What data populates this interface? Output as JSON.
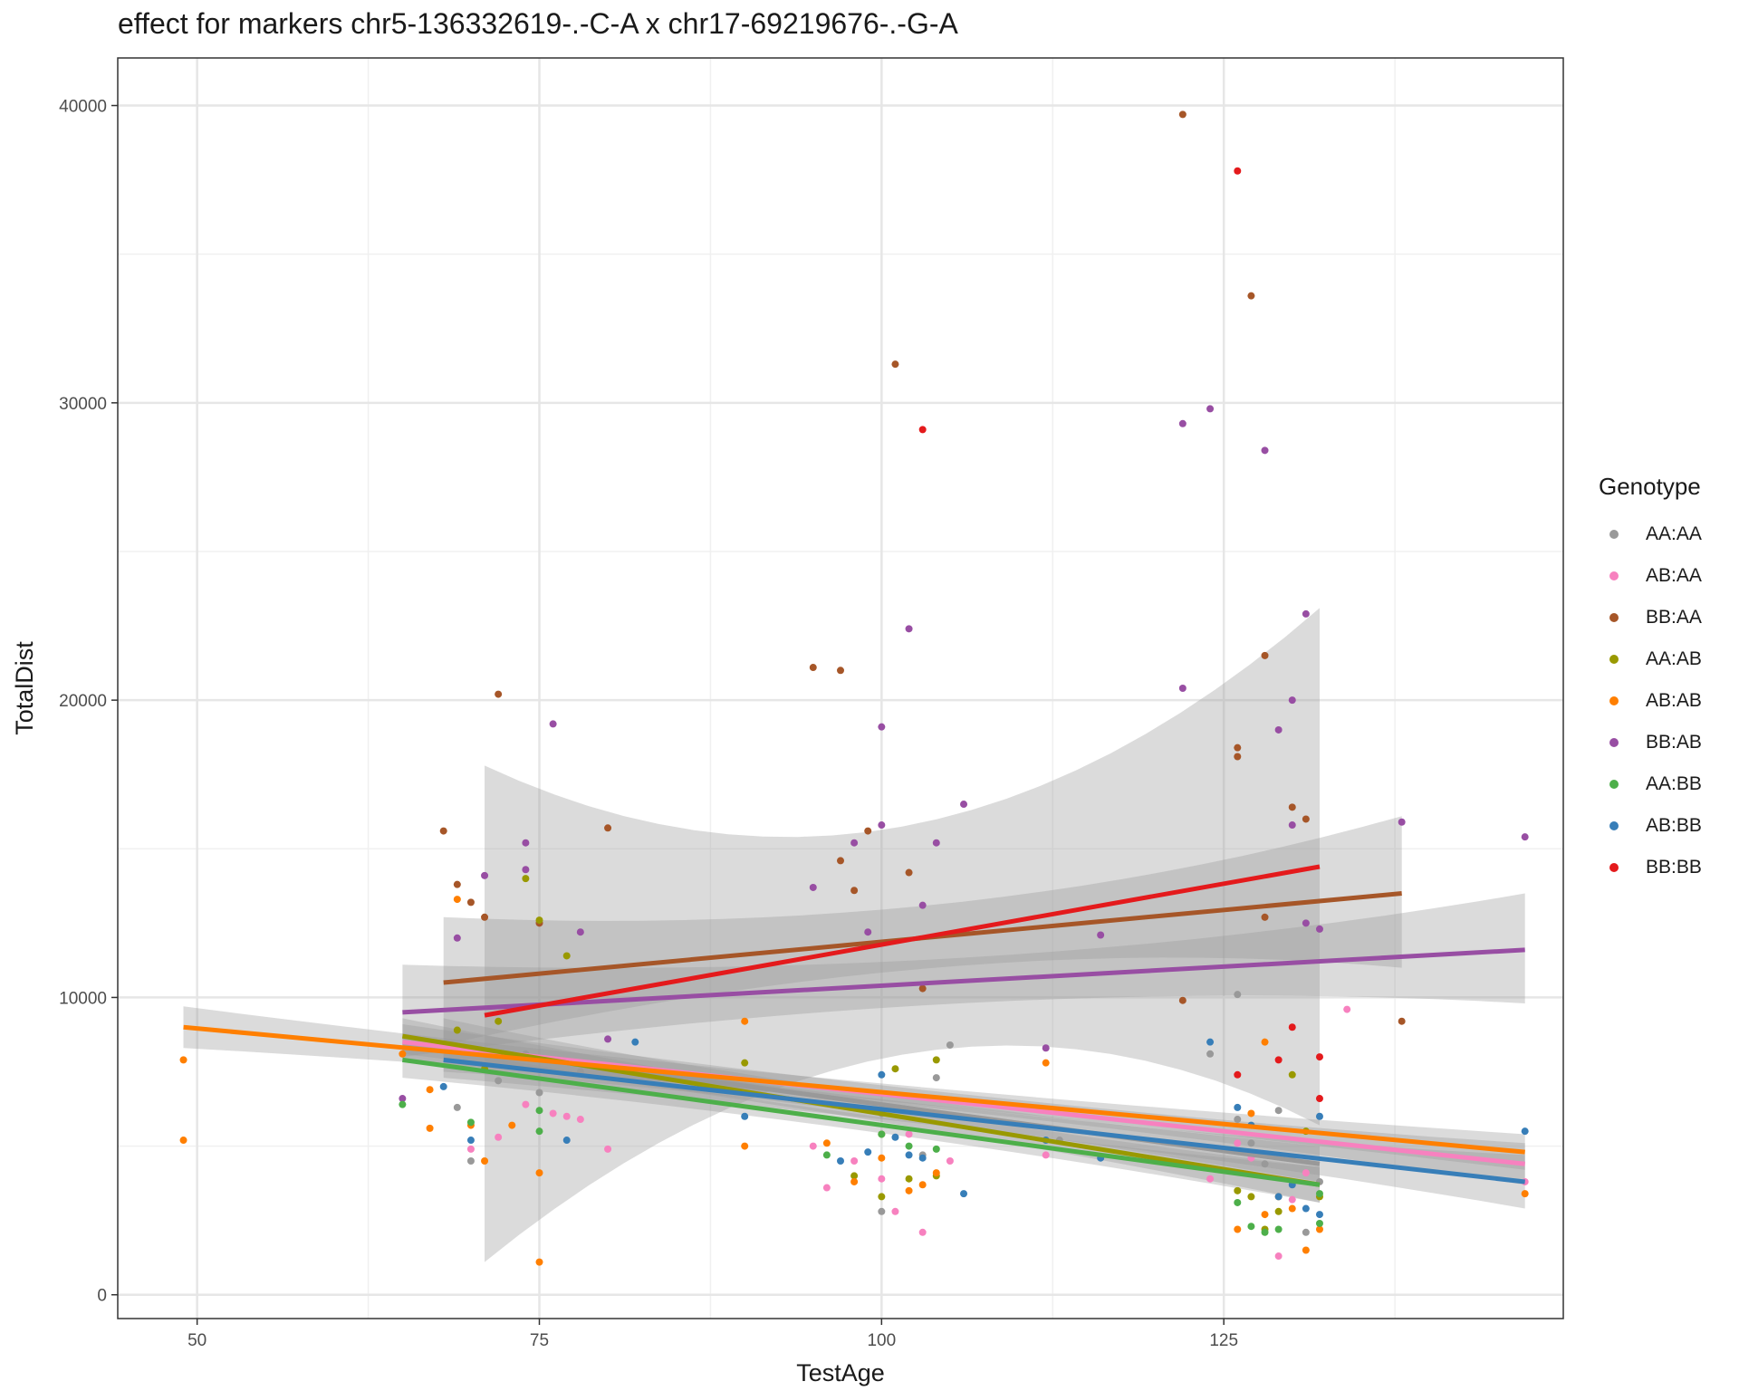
{
  "chart_data": {
    "type": "scatter",
    "title": "effect for markers chr5-136332619-.-C-A x chr17-69219676-.-G-A",
    "xlabel": "TestAge",
    "ylabel": "TotalDist",
    "xlim": [
      44.2,
      149.8
    ],
    "ylim": [
      -800,
      41600
    ],
    "x_ticks": [
      50,
      75,
      100,
      125
    ],
    "y_ticks": [
      0,
      10000,
      20000,
      30000,
      40000
    ],
    "grid": true,
    "legend": {
      "title": "Genotype",
      "placement": "right"
    },
    "series": [
      {
        "name": "AA:AA",
        "color": "#999999",
        "points": [
          [
            69,
            6300
          ],
          [
            70,
            4500
          ],
          [
            72,
            7200
          ],
          [
            74,
            8100
          ],
          [
            75,
            6800
          ],
          [
            78,
            7500
          ],
          [
            100,
            2800
          ],
          [
            100,
            6100
          ],
          [
            103,
            4700
          ],
          [
            104,
            7300
          ],
          [
            105,
            8400
          ],
          [
            113,
            5200
          ],
          [
            124,
            8100
          ],
          [
            126,
            10100
          ],
          [
            126,
            5900
          ],
          [
            127,
            5100
          ],
          [
            128,
            4400
          ],
          [
            129,
            6200
          ],
          [
            130,
            4600
          ],
          [
            131,
            2100
          ],
          [
            132,
            3800
          ]
        ],
        "fit": {
          "x": [
            68,
            132
          ],
          "y": [
            8400,
            4400
          ],
          "ci_lower": [
            7500,
            3800
          ],
          "ci_upper": [
            9300,
            5000
          ]
        }
      },
      {
        "name": "AB:AA",
        "color": "#F781BF",
        "points": [
          [
            70,
            4900
          ],
          [
            72,
            5300
          ],
          [
            74,
            6400
          ],
          [
            76,
            6100
          ],
          [
            77,
            6000
          ],
          [
            78,
            5900
          ],
          [
            80,
            4900
          ],
          [
            95,
            5000
          ],
          [
            96,
            3600
          ],
          [
            98,
            4500
          ],
          [
            100,
            3900
          ],
          [
            101,
            2800
          ],
          [
            102,
            5400
          ],
          [
            103,
            2100
          ],
          [
            105,
            4500
          ],
          [
            112,
            4700
          ],
          [
            124,
            3900
          ],
          [
            126,
            5100
          ],
          [
            127,
            4600
          ],
          [
            129,
            1300
          ],
          [
            130,
            3200
          ],
          [
            131,
            4100
          ],
          [
            134,
            9600
          ],
          [
            147,
            3800
          ]
        ],
        "fit": {
          "x": [
            65,
            147
          ],
          "y": [
            8500,
            4400
          ],
          "ci_lower": [
            7900,
            3700
          ],
          "ci_upper": [
            9100,
            5100
          ]
        }
      },
      {
        "name": "BB:AA",
        "color": "#A65628",
        "points": [
          [
            68,
            15600
          ],
          [
            69,
            13800
          ],
          [
            70,
            13200
          ],
          [
            71,
            12700
          ],
          [
            72,
            20200
          ],
          [
            75,
            12500
          ],
          [
            80,
            15700
          ],
          [
            95,
            21100
          ],
          [
            97,
            21000
          ],
          [
            97,
            14600
          ],
          [
            98,
            13600
          ],
          [
            99,
            15600
          ],
          [
            101,
            31300
          ],
          [
            102,
            14200
          ],
          [
            103,
            10300
          ],
          [
            122,
            39700
          ],
          [
            122,
            9900
          ],
          [
            126,
            18400
          ],
          [
            126,
            18100
          ],
          [
            127,
            33600
          ],
          [
            128,
            21500
          ],
          [
            128,
            12700
          ],
          [
            130,
            16400
          ],
          [
            131,
            16000
          ],
          [
            138,
            9200
          ]
        ],
        "fit": {
          "x": [
            68,
            138
          ],
          "y": [
            10500,
            13500
          ],
          "ci_lower": [
            8400,
            11000
          ],
          "ci_upper": [
            12700,
            16100
          ]
        }
      },
      {
        "name": "AA:AB",
        "color": "#999900",
        "points": [
          [
            69,
            8900
          ],
          [
            71,
            7600
          ],
          [
            72,
            9200
          ],
          [
            74,
            14000
          ],
          [
            75,
            12600
          ],
          [
            77,
            11400
          ],
          [
            90,
            7800
          ],
          [
            98,
            4000
          ],
          [
            100,
            3300
          ],
          [
            100,
            5400
          ],
          [
            101,
            7600
          ],
          [
            102,
            3900
          ],
          [
            104,
            7900
          ],
          [
            104,
            4000
          ],
          [
            126,
            3500
          ],
          [
            127,
            3300
          ],
          [
            128,
            2200
          ],
          [
            129,
            2800
          ],
          [
            130,
            7400
          ],
          [
            131,
            5500
          ],
          [
            132,
            3300
          ]
        ],
        "fit": {
          "x": [
            65,
            132
          ],
          "y": [
            8700,
            3700
          ],
          "ci_lower": [
            8100,
            3100
          ],
          "ci_upper": [
            9300,
            4300
          ]
        }
      },
      {
        "name": "AB:AB",
        "color": "#FF7F00",
        "points": [
          [
            49,
            7900
          ],
          [
            49,
            5200
          ],
          [
            65,
            8100
          ],
          [
            67,
            6900
          ],
          [
            67,
            5600
          ],
          [
            69,
            13300
          ],
          [
            70,
            5700
          ],
          [
            71,
            4500
          ],
          [
            73,
            5700
          ],
          [
            75,
            1100
          ],
          [
            75,
            4100
          ],
          [
            90,
            9200
          ],
          [
            90,
            5000
          ],
          [
            96,
            5100
          ],
          [
            98,
            3800
          ],
          [
            100,
            4600
          ],
          [
            102,
            3500
          ],
          [
            103,
            3700
          ],
          [
            104,
            4100
          ],
          [
            112,
            7800
          ],
          [
            126,
            2200
          ],
          [
            127,
            6100
          ],
          [
            128,
            2700
          ],
          [
            128,
            8500
          ],
          [
            129,
            3300
          ],
          [
            130,
            2900
          ],
          [
            131,
            1500
          ],
          [
            132,
            2200
          ],
          [
            147,
            3400
          ]
        ],
        "fit": {
          "x": [
            49,
            147
          ],
          "y": [
            9000,
            4800
          ],
          "ci_lower": [
            8300,
            4200
          ],
          "ci_upper": [
            9700,
            5400
          ]
        }
      },
      {
        "name": "BB:AB",
        "color": "#984EA3",
        "points": [
          [
            65,
            6600
          ],
          [
            69,
            12000
          ],
          [
            71,
            14100
          ],
          [
            74,
            15200
          ],
          [
            74,
            14300
          ],
          [
            76,
            19200
          ],
          [
            78,
            12200
          ],
          [
            80,
            8600
          ],
          [
            95,
            13700
          ],
          [
            98,
            15200
          ],
          [
            99,
            12200
          ],
          [
            100,
            19100
          ],
          [
            100,
            15800
          ],
          [
            102,
            22400
          ],
          [
            103,
            13100
          ],
          [
            104,
            15200
          ],
          [
            106,
            16500
          ],
          [
            112,
            8300
          ],
          [
            116,
            12100
          ],
          [
            122,
            29300
          ],
          [
            122,
            20400
          ],
          [
            124,
            29800
          ],
          [
            128,
            28400
          ],
          [
            129,
            19000
          ],
          [
            130,
            20000
          ],
          [
            130,
            15800
          ],
          [
            131,
            22900
          ],
          [
            131,
            12500
          ],
          [
            132,
            12300
          ],
          [
            138,
            15900
          ],
          [
            147,
            15400
          ]
        ],
        "fit": {
          "x": [
            65,
            147
          ],
          "y": [
            9500,
            11600
          ],
          "ci_lower": [
            8000,
            9800
          ],
          "ci_upper": [
            11100,
            13500
          ]
        }
      },
      {
        "name": "AA:BB",
        "color": "#4DAF4A",
        "points": [
          [
            65,
            6400
          ],
          [
            70,
            5800
          ],
          [
            75,
            5500
          ],
          [
            75,
            6200
          ],
          [
            96,
            4700
          ],
          [
            100,
            5400
          ],
          [
            102,
            5000
          ],
          [
            104,
            4900
          ],
          [
            126,
            3100
          ],
          [
            127,
            2300
          ],
          [
            128,
            2100
          ],
          [
            129,
            2200
          ],
          [
            132,
            2400
          ],
          [
            132,
            3400
          ]
        ],
        "fit": {
          "x": [
            65,
            132
          ],
          "y": [
            7900,
            3700
          ],
          "ci_lower": [
            7300,
            3100
          ],
          "ci_upper": [
            8500,
            4300
          ]
        }
      },
      {
        "name": "AB:BB",
        "color": "#377EB8",
        "points": [
          [
            68,
            7000
          ],
          [
            70,
            5200
          ],
          [
            77,
            5200
          ],
          [
            82,
            8500
          ],
          [
            90,
            6000
          ],
          [
            97,
            4500
          ],
          [
            99,
            4800
          ],
          [
            100,
            6200
          ],
          [
            100,
            7400
          ],
          [
            101,
            5300
          ],
          [
            102,
            4700
          ],
          [
            103,
            4600
          ],
          [
            106,
            3400
          ],
          [
            112,
            5200
          ],
          [
            116,
            4600
          ],
          [
            124,
            8500
          ],
          [
            126,
            6300
          ],
          [
            127,
            5700
          ],
          [
            128,
            4700
          ],
          [
            129,
            3300
          ],
          [
            130,
            3700
          ],
          [
            131,
            2900
          ],
          [
            132,
            2700
          ],
          [
            132,
            6000
          ],
          [
            147,
            5500
          ]
        ],
        "fit": {
          "x": [
            68,
            147
          ],
          "y": [
            7900,
            3800
          ],
          "ci_lower": [
            7300,
            2900
          ],
          "ci_upper": [
            8500,
            4700
          ]
        }
      },
      {
        "name": "BB:BB",
        "color": "#E41A1C",
        "points": [
          [
            103,
            29100
          ],
          [
            126,
            37800
          ],
          [
            126,
            7400
          ],
          [
            129,
            7900
          ],
          [
            130,
            9000
          ],
          [
            132,
            8000
          ],
          [
            132,
            6600
          ]
        ],
        "fit": {
          "x": [
            71,
            132
          ],
          "y": [
            9400,
            14400
          ],
          "ci_lower": [
            1100,
            5700
          ],
          "ci_upper": [
            17800,
            23100
          ]
        }
      }
    ]
  }
}
